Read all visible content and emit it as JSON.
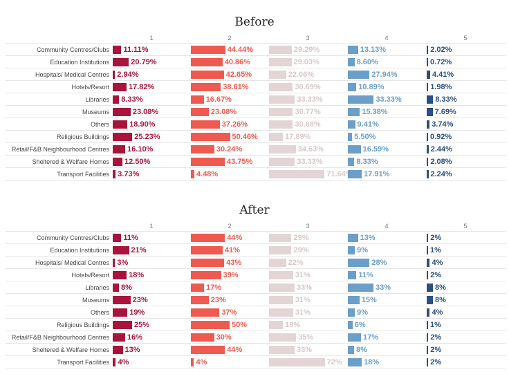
{
  "chart_data": [
    {
      "type": "bar",
      "title": "Before",
      "columns": [
        "1",
        "2",
        "3",
        "4",
        "5"
      ],
      "categories": [
        "Community Centres/Clubs",
        "Education Institutions",
        "Hospitals/ Medical Centres",
        "Hotels/Resort",
        "Libraries",
        "Museums",
        "Others",
        "Religious Buildings",
        "Retail/F&B Neighbourhood Centres",
        "Sheltered & Welfare Homes",
        "Transport Facilities"
      ],
      "series": [
        {
          "name": "1",
          "color": "#a8143c",
          "values": [
            11.11,
            20.79,
            2.94,
            17.82,
            8.33,
            23.08,
            18.9,
            25.23,
            16.1,
            12.5,
            3.73
          ],
          "labels": [
            "11.11%",
            "20.79%",
            "2.94%",
            "17.82%",
            "8.33%",
            "23.08%",
            "18.90%",
            "25.23%",
            "16.10%",
            "12.50%",
            "3.73%"
          ]
        },
        {
          "name": "2",
          "color": "#ef5a50",
          "values": [
            44.44,
            40.86,
            42.65,
            38.61,
            16.67,
            23.08,
            37.26,
            50.46,
            30.24,
            43.75,
            4.48
          ],
          "labels": [
            "44.44%",
            "40.86%",
            "42.65%",
            "38.61%",
            "16.67%",
            "23.08%",
            "37.26%",
            "50.46%",
            "30.24%",
            "43.75%",
            "4.48%"
          ]
        },
        {
          "name": "3",
          "color": "#e3d5d5",
          "values": [
            29.29,
            29.03,
            22.06,
            30.69,
            33.33,
            30.77,
            30.68,
            17.89,
            34.63,
            33.33,
            71.64
          ],
          "labels": [
            "29.29%",
            "29.03%",
            "22.06%",
            "30.69%",
            "33.33%",
            "30.77%",
            "30.68%",
            "17.89%",
            "34.63%",
            "33.33%",
            "71.64%"
          ]
        },
        {
          "name": "4",
          "color": "#6b9ec8",
          "values": [
            13.13,
            8.6,
            27.94,
            10.89,
            33.33,
            15.38,
            9.41,
            5.5,
            16.59,
            8.33,
            17.91
          ],
          "labels": [
            "13.13%",
            "8.60%",
            "27.94%",
            "10.89%",
            "33.33%",
            "15.38%",
            "9.41%",
            "5.50%",
            "16.59%",
            "8.33%",
            "17.91%"
          ]
        },
        {
          "name": "5",
          "color": "#2b4f7e",
          "values": [
            2.02,
            0.72,
            4.41,
            1.98,
            8.33,
            7.69,
            3.74,
            0.92,
            2.44,
            2.08,
            2.24
          ],
          "labels": [
            "2.02%",
            "0.72%",
            "4.41%",
            "1.98%",
            "8.33%",
            "7.69%",
            "3.74%",
            "0.92%",
            "2.44%",
            "2.08%",
            "2.24%"
          ]
        }
      ]
    },
    {
      "type": "bar",
      "title": "After",
      "columns": [
        "1",
        "2",
        "3",
        "4",
        "5"
      ],
      "categories": [
        "Community Centres/Clubs",
        "Education Institutions",
        "Hospitals/ Medical Centres",
        "Hotels/Resort",
        "Libraries",
        "Museums",
        "Others",
        "Religious Buildings",
        "Retail/F&B Neighbourhood Centres",
        "Sheltered & Welfare Homes",
        "Transport Facilities"
      ],
      "series": [
        {
          "name": "1",
          "color": "#a8143c",
          "values": [
            11,
            21,
            3,
            18,
            8,
            23,
            19,
            25,
            16,
            13,
            4
          ],
          "labels": [
            "11%",
            "21%",
            "3%",
            "18%",
            "8%",
            "23%",
            "19%",
            "25%",
            "16%",
            "13%",
            "4%"
          ]
        },
        {
          "name": "2",
          "color": "#ef5a50",
          "values": [
            44,
            41,
            43,
            39,
            17,
            23,
            37,
            50,
            30,
            44,
            4
          ],
          "labels": [
            "44%",
            "41%",
            "43%",
            "39%",
            "17%",
            "23%",
            "37%",
            "50%",
            "30%",
            "44%",
            "4%"
          ]
        },
        {
          "name": "3",
          "color": "#e3d5d5",
          "values": [
            29,
            29,
            22,
            31,
            33,
            31,
            31,
            18,
            35,
            33,
            72
          ],
          "labels": [
            "29%",
            "29%",
            "22%",
            "31%",
            "33%",
            "31%",
            "31%",
            "18%",
            "35%",
            "33%",
            "72%"
          ]
        },
        {
          "name": "4",
          "color": "#6b9ec8",
          "values": [
            13,
            9,
            28,
            11,
            33,
            15,
            9,
            6,
            17,
            8,
            18
          ],
          "labels": [
            "13%",
            "9%",
            "28%",
            "11%",
            "33%",
            "15%",
            "9%",
            "6%",
            "17%",
            "8%",
            "18%"
          ]
        },
        {
          "name": "5",
          "color": "#2b4f7e",
          "values": [
            2,
            1,
            4,
            2,
            8,
            8,
            4,
            1,
            2,
            2,
            2
          ],
          "labels": [
            "2%",
            "1%",
            "4%",
            "2%",
            "8%",
            "8%",
            "4%",
            "1%",
            "2%",
            "2%",
            "2%"
          ]
        }
      ]
    }
  ]
}
